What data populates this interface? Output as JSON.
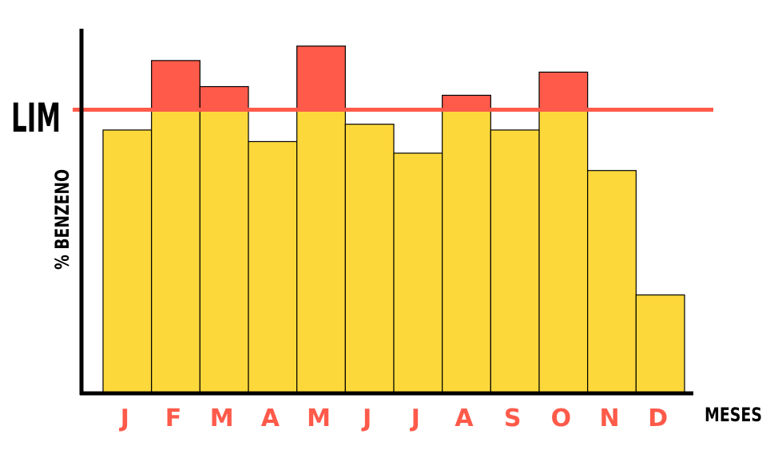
{
  "chart_data": {
    "type": "bar",
    "categories": [
      "J",
      "F",
      "M",
      "A",
      "M",
      "J",
      "J",
      "A",
      "S",
      "O",
      "N",
      "D"
    ],
    "values": [
      91,
      115,
      106,
      87,
      120,
      93,
      83,
      103,
      91,
      111,
      77,
      34
    ],
    "limit": {
      "label": "LIM",
      "value": 98
    },
    "title": "",
    "xlabel": "MESES",
    "ylabel": "% BENZENO",
    "ylim": [
      0,
      126
    ],
    "grid": false,
    "colors": {
      "bar": "#FDD83B",
      "excess": "#FF5A4A",
      "limit_line": "#FF5A4A",
      "tick_label": "#FF5A4A",
      "axis": "#000000",
      "bar_stroke": "#000000"
    }
  }
}
